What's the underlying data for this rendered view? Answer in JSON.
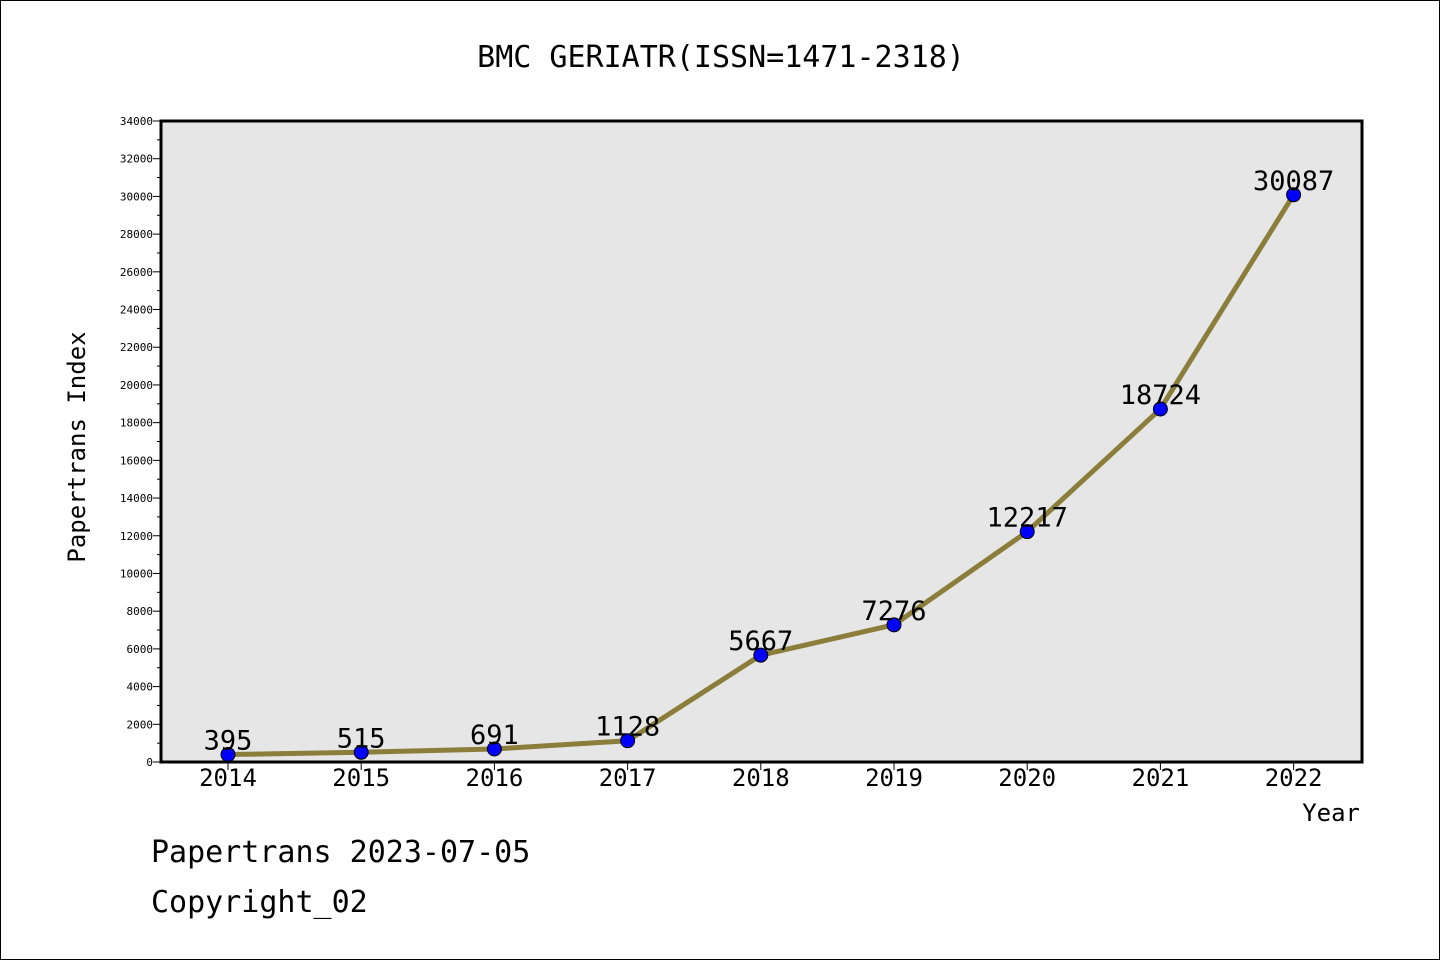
{
  "chart_data": {
    "type": "line",
    "title": "BMC GERIATR(ISSN=1471-2318)",
    "xlabel": "Year",
    "ylabel": "Papertrans Index",
    "categories": [
      "2014",
      "2015",
      "2016",
      "2017",
      "2018",
      "2019",
      "2020",
      "2021",
      "2022"
    ],
    "values": [
      395,
      515,
      691,
      1128,
      5667,
      7276,
      12217,
      18724,
      30087
    ],
    "data_labels": [
      "395",
      "515",
      "691",
      "1128",
      "5667",
      "7276",
      "12217",
      "18724",
      "30087"
    ],
    "ylim": [
      0,
      34000
    ],
    "yticks": [
      0,
      2000,
      4000,
      6000,
      8000,
      10000,
      12000,
      14000,
      16000,
      18000,
      20000,
      22000,
      24000,
      26000,
      28000,
      30000,
      32000,
      34000
    ],
    "grid": false,
    "colors": {
      "line": "#8b7d3a",
      "marker": "#0000ff",
      "plot_background": "#e6e6e6"
    }
  },
  "footer": {
    "date_line": "Papertrans 2023-07-05",
    "copyright_line": "Copyright_02"
  }
}
